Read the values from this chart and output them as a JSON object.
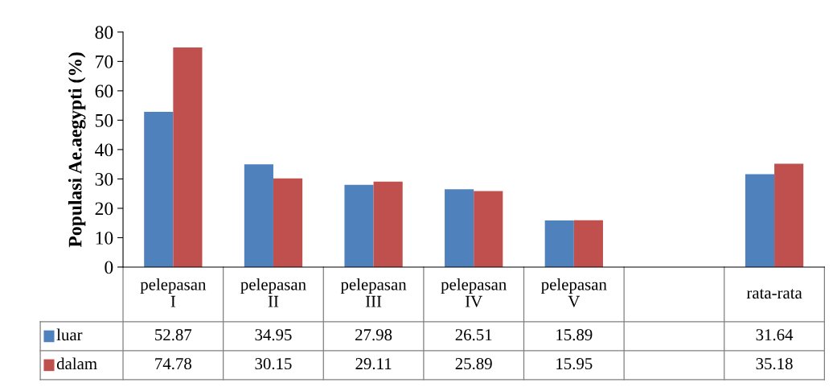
{
  "chart_data": {
    "type": "bar",
    "ylabel": "Populasi Ae.aegypti (%)",
    "categories": [
      "pelepasan\nI",
      "pelepasan\nII",
      "pelepasan\nIII",
      "pelepasan\nIV",
      "pelepasan\nV",
      null,
      "rata-rata"
    ],
    "series": [
      {
        "name": "luar",
        "color": "#4f81bd",
        "values": [
          52.87,
          34.95,
          27.98,
          26.51,
          15.89,
          null,
          31.64
        ]
      },
      {
        "name": "dalam",
        "color": "#c0504d",
        "values": [
          74.78,
          30.15,
          29.11,
          25.89,
          15.95,
          null,
          35.18
        ]
      }
    ],
    "ylim": [
      0,
      80
    ],
    "yticks": [
      0,
      10,
      20,
      30,
      40,
      50,
      60,
      70,
      80
    ],
    "grid": false,
    "legend": "bottom",
    "data_labels": true
  }
}
